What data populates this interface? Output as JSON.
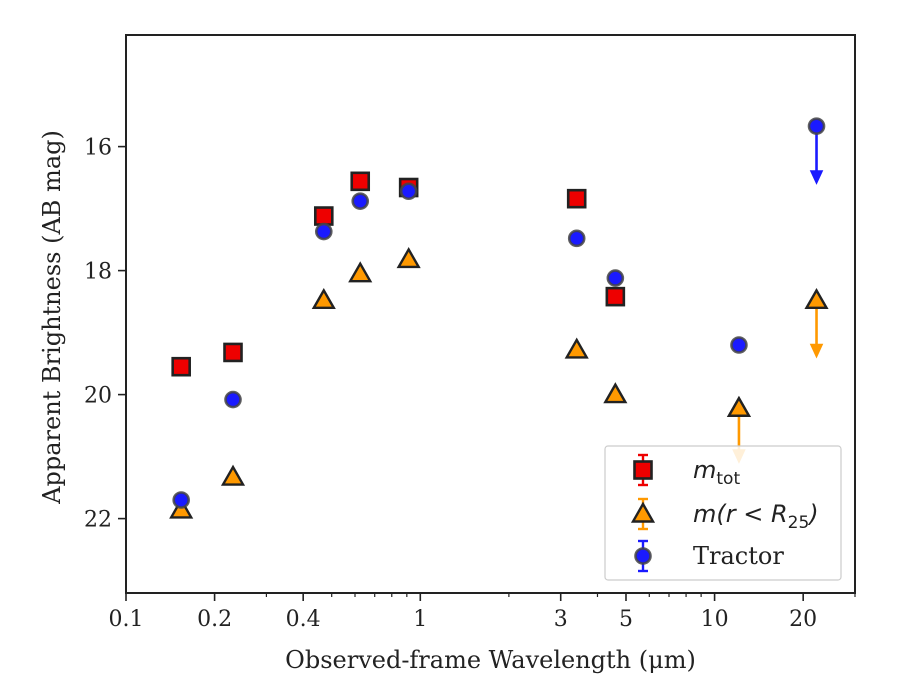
{
  "chart_data": {
    "type": "scatter",
    "xlabel": "Observed-frame Wavelength (μm)",
    "ylabel": "Apparent Brightness (AB mag)",
    "xscale": "log",
    "xlim": [
      0.1,
      30
    ],
    "ylim": [
      23.2,
      14.2
    ],
    "y_inverted": true,
    "grid": false,
    "legend_position": "lower right",
    "x_ticks": [
      {
        "value": 0.1,
        "label": "0.1"
      },
      {
        "value": 0.2,
        "label": "0.2"
      },
      {
        "value": 0.4,
        "label": "0.4"
      },
      {
        "value": 1,
        "label": "1"
      },
      {
        "value": 3,
        "label": "3"
      },
      {
        "value": 5,
        "label": "5"
      },
      {
        "value": 10,
        "label": "10"
      },
      {
        "value": 20,
        "label": "20"
      }
    ],
    "y_ticks": [
      {
        "value": 16,
        "label": "16"
      },
      {
        "value": 18,
        "label": "18"
      },
      {
        "value": 20,
        "label": "20"
      },
      {
        "value": 22,
        "label": "22"
      }
    ],
    "series": [
      {
        "name": "m_tot",
        "legend_main": "m",
        "legend_sub": "tot",
        "marker": "square",
        "color": "#ee0000",
        "edge_color": "#222222",
        "points": [
          {
            "x": 0.154,
            "y": 19.55
          },
          {
            "x": 0.231,
            "y": 19.32
          },
          {
            "x": 0.47,
            "y": 17.12
          },
          {
            "x": 0.625,
            "y": 16.56
          },
          {
            "x": 0.913,
            "y": 16.66
          },
          {
            "x": 3.4,
            "y": 16.84
          },
          {
            "x": 4.6,
            "y": 18.42
          }
        ],
        "upper_limits": []
      },
      {
        "name": "m(r < R25)",
        "legend_main": "m(r < R",
        "legend_sub": "25",
        "legend_tail": ")",
        "marker": "triangle",
        "color": "#ff9900",
        "edge_color": "#222222",
        "points": [
          {
            "x": 0.154,
            "y": 21.86
          },
          {
            "x": 0.231,
            "y": 21.33
          },
          {
            "x": 0.47,
            "y": 18.48
          },
          {
            "x": 0.625,
            "y": 18.05
          },
          {
            "x": 0.913,
            "y": 17.82
          },
          {
            "x": 3.4,
            "y": 19.28
          },
          {
            "x": 4.6,
            "y": 20.0
          },
          {
            "x": 12.1,
            "y": 20.22
          }
        ],
        "upper_limits": [
          {
            "x": 12.1,
            "y": 20.22,
            "to": 21.05
          },
          {
            "x": 22.2,
            "y": 18.48,
            "to": 19.35
          }
        ]
      },
      {
        "name": "Tractor",
        "marker": "circle",
        "color": "#1a1aff",
        "edge_color": "#444444",
        "points": [
          {
            "x": 0.154,
            "y": 21.7
          },
          {
            "x": 0.231,
            "y": 20.08
          },
          {
            "x": 0.47,
            "y": 17.37
          },
          {
            "x": 0.625,
            "y": 16.88
          },
          {
            "x": 0.913,
            "y": 16.72
          },
          {
            "x": 3.4,
            "y": 17.48
          },
          {
            "x": 4.6,
            "y": 18.12
          },
          {
            "x": 12.1,
            "y": 19.2
          }
        ],
        "upper_limits": [
          {
            "x": 22.2,
            "y": 15.67,
            "to": 16.55
          }
        ]
      }
    ]
  }
}
